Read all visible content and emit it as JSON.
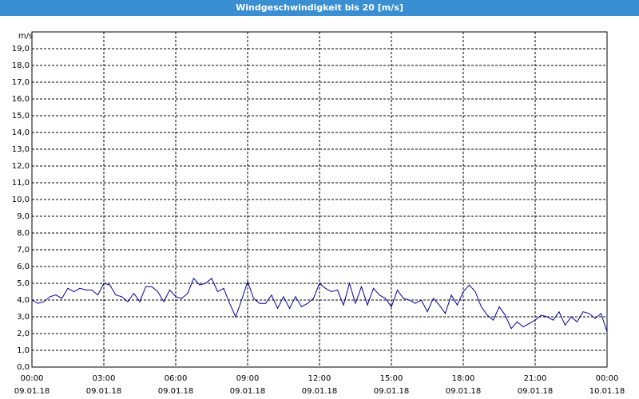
{
  "chart_data": {
    "type": "line",
    "title": "Windgeschwindigkeit bis 20 [m/s]",
    "y_unit": "m/s",
    "xlim": [
      0,
      24
    ],
    "ylim": [
      0,
      20
    ],
    "xticks": [
      {
        "value": 0,
        "label": "00:00"
      },
      {
        "value": 3,
        "label": "03:00"
      },
      {
        "value": 6,
        "label": "06:00"
      },
      {
        "value": 9,
        "label": "09:00"
      },
      {
        "value": 12,
        "label": "12:00"
      },
      {
        "value": 15,
        "label": "15:00"
      },
      {
        "value": 18,
        "label": "18:00"
      },
      {
        "value": 21,
        "label": "21:00"
      },
      {
        "value": 24,
        "label": "00:00"
      }
    ],
    "xtick_dates": [
      "09.01.18",
      "09.01.18",
      "09.01.18",
      "09.01.18",
      "09.01.18",
      "09.01.18",
      "09.01.18",
      "09.01.18",
      "10.01.18"
    ],
    "yticks": [
      {
        "value": 0,
        "label": "0,0"
      },
      {
        "value": 1,
        "label": "1,0"
      },
      {
        "value": 2,
        "label": "2,0"
      },
      {
        "value": 3,
        "label": "3,0"
      },
      {
        "value": 4,
        "label": "4,0"
      },
      {
        "value": 5,
        "label": "5,0"
      },
      {
        "value": 6,
        "label": "6,0"
      },
      {
        "value": 7,
        "label": "7,0"
      },
      {
        "value": 8,
        "label": "8,0"
      },
      {
        "value": 9,
        "label": "9,0"
      },
      {
        "value": 10,
        "label": "10,0"
      },
      {
        "value": 11,
        "label": "11,0"
      },
      {
        "value": 12,
        "label": "12,0"
      },
      {
        "value": 13,
        "label": "13,0"
      },
      {
        "value": 14,
        "label": "14,0"
      },
      {
        "value": 15,
        "label": "15,0"
      },
      {
        "value": 16,
        "label": "16,0"
      },
      {
        "value": 17,
        "label": "17,0"
      },
      {
        "value": 18,
        "label": "18,0"
      },
      {
        "value": 19,
        "label": "19,0"
      }
    ],
    "grid": true,
    "x": [
      0,
      0.25,
      0.5,
      0.75,
      1,
      1.25,
      1.5,
      1.75,
      2,
      2.25,
      2.5,
      2.75,
      3,
      3.25,
      3.5,
      3.75,
      4,
      4.25,
      4.5,
      4.75,
      5,
      5.25,
      5.5,
      5.75,
      6,
      6.25,
      6.5,
      6.75,
      7,
      7.25,
      7.5,
      7.75,
      8,
      8.25,
      8.5,
      8.75,
      9,
      9.25,
      9.5,
      9.75,
      10,
      10.25,
      10.5,
      10.75,
      11,
      11.25,
      11.5,
      11.75,
      12,
      12.25,
      12.5,
      12.75,
      13,
      13.25,
      13.5,
      13.75,
      14,
      14.25,
      14.5,
      14.75,
      15,
      15.25,
      15.5,
      15.75,
      16,
      16.25,
      16.5,
      16.75,
      17,
      17.25,
      17.5,
      17.75,
      18,
      18.25,
      18.5,
      18.75,
      19,
      19.25,
      19.5,
      19.75,
      20,
      20.25,
      20.5,
      20.75,
      21,
      21.25,
      21.5,
      21.75,
      22,
      22.25,
      22.5,
      22.75,
      23,
      23.25,
      23.5,
      23.75,
      24
    ],
    "series": [
      {
        "color": "#0000a0",
        "values": [
          4.0,
          3.8,
          3.9,
          4.2,
          4.3,
          4.1,
          4.7,
          4.5,
          4.7,
          4.6,
          4.6,
          4.3,
          5.0,
          4.9,
          4.3,
          4.2,
          3.9,
          4.4,
          3.9,
          4.8,
          4.8,
          4.5,
          3.9,
          4.6,
          4.2,
          4.1,
          4.4,
          5.3,
          4.9,
          5.0,
          5.3,
          4.5,
          4.7,
          3.8,
          3.0,
          4.0,
          5.1,
          4.1,
          3.8,
          3.8,
          4.3,
          3.5,
          4.2,
          3.5,
          4.2,
          3.6,
          3.8,
          4.1,
          5.0,
          4.7,
          4.5,
          4.6,
          3.7,
          5.0,
          3.8,
          4.8,
          3.7,
          4.7,
          4.3,
          4.1,
          3.6,
          4.6,
          4.1,
          4.0,
          3.8,
          4.0,
          3.3,
          4.1,
          3.7,
          3.2,
          4.3,
          3.7,
          4.5,
          4.9,
          4.5,
          3.6,
          3.1,
          2.8,
          3.6,
          3.1,
          2.3,
          2.7,
          2.4,
          2.6,
          2.8,
          3.1,
          3.0,
          2.8,
          3.3,
          2.5,
          3.0,
          2.7,
          3.3,
          3.2,
          2.9,
          3.2,
          2.1
        ]
      }
    ]
  }
}
